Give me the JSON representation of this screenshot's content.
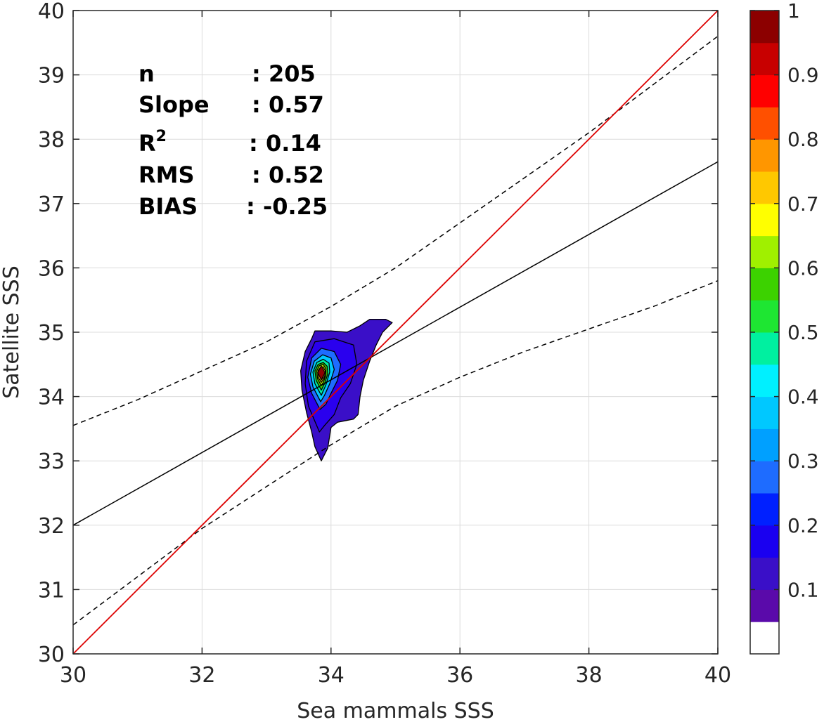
{
  "chart_data": {
    "type": "density-scatter",
    "xlabel": "Sea mammals SSS",
    "ylabel": "Satellite SSS",
    "xlim": [
      30,
      40
    ],
    "ylim": [
      30,
      40
    ],
    "x_ticks": [
      "30",
      "32",
      "34",
      "36",
      "38",
      "40"
    ],
    "y_ticks": [
      "30",
      "31",
      "32",
      "33",
      "34",
      "35",
      "36",
      "37",
      "38",
      "39",
      "40"
    ],
    "grid": true,
    "stats": [
      {
        "label": "n",
        "value": ": 205"
      },
      {
        "label": "Slope",
        "value": ": 0.57"
      },
      {
        "label": "R",
        "sup": "2",
        "value": ": 0.14"
      },
      {
        "label": "RMS",
        "value": ": 0.52"
      },
      {
        "label": "BIAS",
        "value": ": -0.25"
      }
    ],
    "identity_line": {
      "color": "#dd0000",
      "points": [
        [
          30,
          30
        ],
        [
          40,
          40
        ]
      ]
    },
    "regression_line": {
      "color": "#000000",
      "points": [
        [
          30,
          32.0
        ],
        [
          40,
          37.65
        ]
      ]
    },
    "prediction_band_upper": {
      "style": "dashed",
      "points": [
        [
          30,
          33.55
        ],
        [
          31,
          33.95
        ],
        [
          32,
          34.4
        ],
        [
          33,
          34.85
        ],
        [
          34,
          35.4
        ],
        [
          35,
          36.0
        ],
        [
          36,
          36.7
        ],
        [
          37,
          37.4
        ],
        [
          38,
          38.1
        ],
        [
          39,
          38.85
        ],
        [
          40,
          39.6
        ]
      ]
    },
    "prediction_band_lower": {
      "style": "dashed",
      "points": [
        [
          30,
          30.45
        ],
        [
          31,
          31.2
        ],
        [
          32,
          31.95
        ],
        [
          33,
          32.6
        ],
        [
          34,
          33.25
        ],
        [
          35,
          33.85
        ],
        [
          36,
          34.3
        ],
        [
          37,
          34.7
        ],
        [
          38,
          35.05
        ],
        [
          39,
          35.4
        ],
        [
          40,
          35.8
        ]
      ]
    },
    "density_peak": {
      "x": 33.85,
      "y": 34.37
    },
    "density_contours": [
      {
        "level": 0.05,
        "color": "#3a0fc8",
        "points": [
          [
            33.85,
            33.0
          ],
          [
            33.75,
            33.22
          ],
          [
            33.7,
            33.45
          ],
          [
            33.62,
            33.75
          ],
          [
            33.55,
            34.1
          ],
          [
            33.53,
            34.4
          ],
          [
            33.6,
            34.7
          ],
          [
            33.7,
            34.9
          ],
          [
            33.75,
            35.02
          ],
          [
            34.0,
            35.02
          ],
          [
            34.25,
            35.0
          ],
          [
            34.45,
            35.1
          ],
          [
            34.6,
            35.2
          ],
          [
            34.85,
            35.2
          ],
          [
            34.95,
            35.15
          ],
          [
            34.8,
            35.0
          ],
          [
            34.7,
            34.8
          ],
          [
            34.6,
            34.55
          ],
          [
            34.5,
            34.25
          ],
          [
            34.45,
            34.0
          ],
          [
            34.42,
            33.72
          ],
          [
            34.35,
            33.65
          ],
          [
            34.1,
            33.6
          ],
          [
            34.0,
            33.52
          ],
          [
            33.95,
            33.2
          ],
          [
            33.85,
            33.0
          ]
        ]
      },
      {
        "level": 0.1,
        "color": "#2a00ee",
        "points": [
          [
            33.82,
            33.45
          ],
          [
            33.65,
            33.85
          ],
          [
            33.6,
            34.2
          ],
          [
            33.62,
            34.55
          ],
          [
            33.75,
            34.85
          ],
          [
            34.05,
            34.9
          ],
          [
            34.35,
            34.8
          ],
          [
            34.4,
            34.5
          ],
          [
            34.3,
            34.2
          ],
          [
            34.15,
            33.98
          ],
          [
            34.05,
            33.72
          ],
          [
            33.9,
            33.55
          ],
          [
            33.82,
            33.45
          ]
        ]
      },
      {
        "level": 0.2,
        "color": "#1e6cff",
        "points": [
          [
            33.83,
            33.8
          ],
          [
            33.7,
            34.05
          ],
          [
            33.64,
            34.3
          ],
          [
            33.7,
            34.6
          ],
          [
            33.85,
            34.75
          ],
          [
            34.05,
            34.7
          ],
          [
            34.15,
            34.5
          ],
          [
            34.1,
            34.25
          ],
          [
            34.0,
            34.05
          ],
          [
            33.92,
            33.88
          ],
          [
            33.83,
            33.8
          ]
        ]
      },
      {
        "level": 0.3,
        "color": "#00c8ff",
        "points": [
          [
            33.84,
            33.92
          ],
          [
            33.72,
            34.15
          ],
          [
            33.68,
            34.35
          ],
          [
            33.74,
            34.55
          ],
          [
            33.87,
            34.65
          ],
          [
            34.0,
            34.6
          ],
          [
            34.05,
            34.42
          ],
          [
            33.98,
            34.2
          ],
          [
            33.9,
            34.02
          ],
          [
            33.84,
            33.92
          ]
        ]
      },
      {
        "level": 0.4,
        "color": "#00f0a0",
        "points": [
          [
            33.85,
            34.02
          ],
          [
            33.75,
            34.2
          ],
          [
            33.72,
            34.38
          ],
          [
            33.78,
            34.53
          ],
          [
            33.88,
            34.58
          ],
          [
            33.97,
            34.52
          ],
          [
            33.98,
            34.38
          ],
          [
            33.92,
            34.18
          ],
          [
            33.85,
            34.02
          ]
        ]
      },
      {
        "level": 0.5,
        "color": "#3cd200",
        "points": [
          [
            33.85,
            34.1
          ],
          [
            33.77,
            34.25
          ],
          [
            33.75,
            34.4
          ],
          [
            33.8,
            34.5
          ],
          [
            33.88,
            34.53
          ],
          [
            33.94,
            34.47
          ],
          [
            33.95,
            34.35
          ],
          [
            33.9,
            34.2
          ],
          [
            33.85,
            34.1
          ]
        ]
      },
      {
        "level": 0.6,
        "color": "#c8f000",
        "points": [
          [
            33.85,
            34.17
          ],
          [
            33.79,
            34.28
          ],
          [
            33.78,
            34.4
          ],
          [
            33.82,
            34.48
          ],
          [
            33.88,
            34.5
          ],
          [
            33.92,
            34.43
          ],
          [
            33.92,
            34.33
          ],
          [
            33.88,
            34.22
          ],
          [
            33.85,
            34.17
          ]
        ]
      },
      {
        "level": 0.7,
        "color": "#ffc800",
        "points": [
          [
            33.85,
            34.22
          ],
          [
            33.8,
            34.3
          ],
          [
            33.8,
            34.4
          ],
          [
            33.84,
            34.46
          ],
          [
            33.88,
            34.46
          ],
          [
            33.91,
            34.4
          ],
          [
            33.9,
            34.3
          ],
          [
            33.85,
            34.22
          ]
        ]
      },
      {
        "level": 0.8,
        "color": "#ff5000",
        "points": [
          [
            33.85,
            34.26
          ],
          [
            33.82,
            34.32
          ],
          [
            33.82,
            34.4
          ],
          [
            33.85,
            34.44
          ],
          [
            33.88,
            34.42
          ],
          [
            33.89,
            34.36
          ],
          [
            33.88,
            34.3
          ],
          [
            33.85,
            34.26
          ]
        ]
      },
      {
        "level": 0.9,
        "color": "#c80000",
        "points": [
          [
            33.85,
            34.3
          ],
          [
            33.83,
            34.35
          ],
          [
            33.84,
            34.41
          ],
          [
            33.87,
            34.41
          ],
          [
            33.88,
            34.35
          ],
          [
            33.85,
            34.3
          ]
        ]
      }
    ],
    "colorbar": {
      "range": [
        0,
        1
      ],
      "ticks": [
        "0.1",
        "0.2",
        "0.3",
        "0.4",
        "0.5",
        "0.6",
        "0.7",
        "0.8",
        "0.9",
        "1"
      ],
      "colors": [
        "#ffffff",
        "#5a0aaa",
        "#3a0fc8",
        "#1a00f0",
        "#0020ff",
        "#1e6cff",
        "#00a0ff",
        "#00c8ff",
        "#00f0ff",
        "#00f0a0",
        "#1ee632",
        "#3cd200",
        "#a0f000",
        "#ffff00",
        "#ffc800",
        "#ff9600",
        "#ff5000",
        "#ff0000",
        "#c80000",
        "#8c0000"
      ]
    }
  }
}
